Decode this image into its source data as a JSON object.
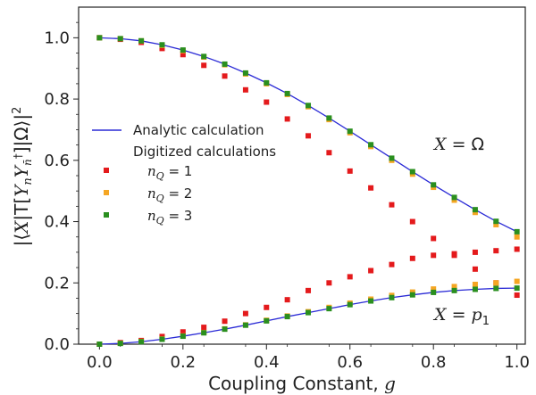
{
  "chart_data": {
    "type": "scatter",
    "xlabel": "Coupling Constant, g",
    "ylabel": "|⟨X|T[Y_n Y_n̄†]|Ω⟩|²",
    "xlim": [
      -0.05,
      1.02
    ],
    "ylim": [
      0.0,
      1.1
    ],
    "x_ticks": [
      "0.0",
      "0.2",
      "0.4",
      "0.6",
      "0.8",
      "1.0"
    ],
    "y_ticks": [
      "0.0",
      "0.2",
      "0.4",
      "0.6",
      "0.8",
      "1.0"
    ],
    "grid": false,
    "legend": {
      "placement": "center-left",
      "line_label": "Analytic calculation",
      "group_label": "Digitized calculations",
      "entries": [
        {
          "label": "n_Q = 1",
          "color": "#e41a1c"
        },
        {
          "label": "n_Q = 2",
          "color": "#f5a623"
        },
        {
          "label": "n_Q = 3",
          "color": "#2a8f1f"
        }
      ]
    },
    "annotations": {
      "omega": "X = Ω",
      "p1": "X = p₁"
    },
    "line_color": "#2a2ad6",
    "x": [
      0.0,
      0.05,
      0.1,
      0.15,
      0.2,
      0.25,
      0.3,
      0.35,
      0.4,
      0.45,
      0.5,
      0.55,
      0.6,
      0.65,
      0.7,
      0.75,
      0.8,
      0.85,
      0.9,
      0.95,
      1.0
    ],
    "series": [
      {
        "name": "Analytic calculation (X = Ω)",
        "kind": "line",
        "values": [
          1.0,
          0.997,
          0.99,
          0.977,
          0.96,
          0.939,
          0.914,
          0.885,
          0.853,
          0.818,
          0.779,
          0.738,
          0.695,
          0.651,
          0.607,
          0.563,
          0.52,
          0.479,
          0.439,
          0.401,
          0.367
        ]
      },
      {
        "name": "Analytic calculation (X = p₁)",
        "kind": "line",
        "values": [
          0.0,
          0.0025,
          0.008,
          0.016,
          0.026,
          0.037,
          0.049,
          0.062,
          0.076,
          0.09,
          0.103,
          0.116,
          0.129,
          0.141,
          0.152,
          0.161,
          0.169,
          0.175,
          0.179,
          0.182,
          0.183
        ]
      },
      {
        "name": "n_Q = 1 (X = Ω)",
        "kind": "points",
        "color": "#e41a1c",
        "values": [
          1.0,
          0.995,
          0.985,
          0.965,
          0.945,
          0.91,
          0.875,
          0.83,
          0.79,
          0.735,
          0.68,
          0.625,
          0.565,
          0.51,
          0.455,
          0.4,
          0.345,
          0.29,
          0.245,
          0.2,
          0.16
        ]
      },
      {
        "name": "n_Q = 1 (X = p₁)",
        "kind": "points",
        "color": "#e41a1c",
        "values": [
          0.0,
          0.005,
          0.012,
          0.025,
          0.04,
          0.055,
          0.075,
          0.1,
          0.12,
          0.145,
          0.175,
          0.2,
          0.22,
          0.24,
          0.26,
          0.28,
          0.29,
          0.295,
          0.3,
          0.305,
          0.31
        ]
      },
      {
        "name": "n_Q = 2 (X = Ω)",
        "kind": "points",
        "color": "#f5a623",
        "values": [
          1.0,
          0.997,
          0.99,
          0.975,
          0.958,
          0.937,
          0.912,
          0.882,
          0.85,
          0.815,
          0.775,
          0.733,
          0.69,
          0.645,
          0.6,
          0.555,
          0.512,
          0.47,
          0.43,
          0.39,
          0.35
        ]
      },
      {
        "name": "n_Q = 2 (X = p₁)",
        "kind": "points",
        "color": "#f5a623",
        "values": [
          0.0,
          0.003,
          0.009,
          0.017,
          0.027,
          0.038,
          0.05,
          0.063,
          0.078,
          0.092,
          0.106,
          0.12,
          0.134,
          0.147,
          0.159,
          0.17,
          0.18,
          0.188,
          0.195,
          0.2,
          0.205
        ]
      },
      {
        "name": "n_Q = 3 (X = Ω)",
        "kind": "points",
        "color": "#2a8f1f",
        "values": [
          1.0,
          0.997,
          0.99,
          0.977,
          0.96,
          0.939,
          0.914,
          0.885,
          0.853,
          0.818,
          0.779,
          0.738,
          0.695,
          0.651,
          0.607,
          0.563,
          0.52,
          0.479,
          0.439,
          0.401,
          0.367
        ]
      },
      {
        "name": "n_Q = 3 (X = p₁)",
        "kind": "points",
        "color": "#2a8f1f",
        "values": [
          0.0,
          0.0025,
          0.008,
          0.016,
          0.026,
          0.037,
          0.049,
          0.062,
          0.076,
          0.09,
          0.103,
          0.116,
          0.129,
          0.141,
          0.152,
          0.161,
          0.169,
          0.175,
          0.179,
          0.182,
          0.183
        ]
      }
    ]
  }
}
